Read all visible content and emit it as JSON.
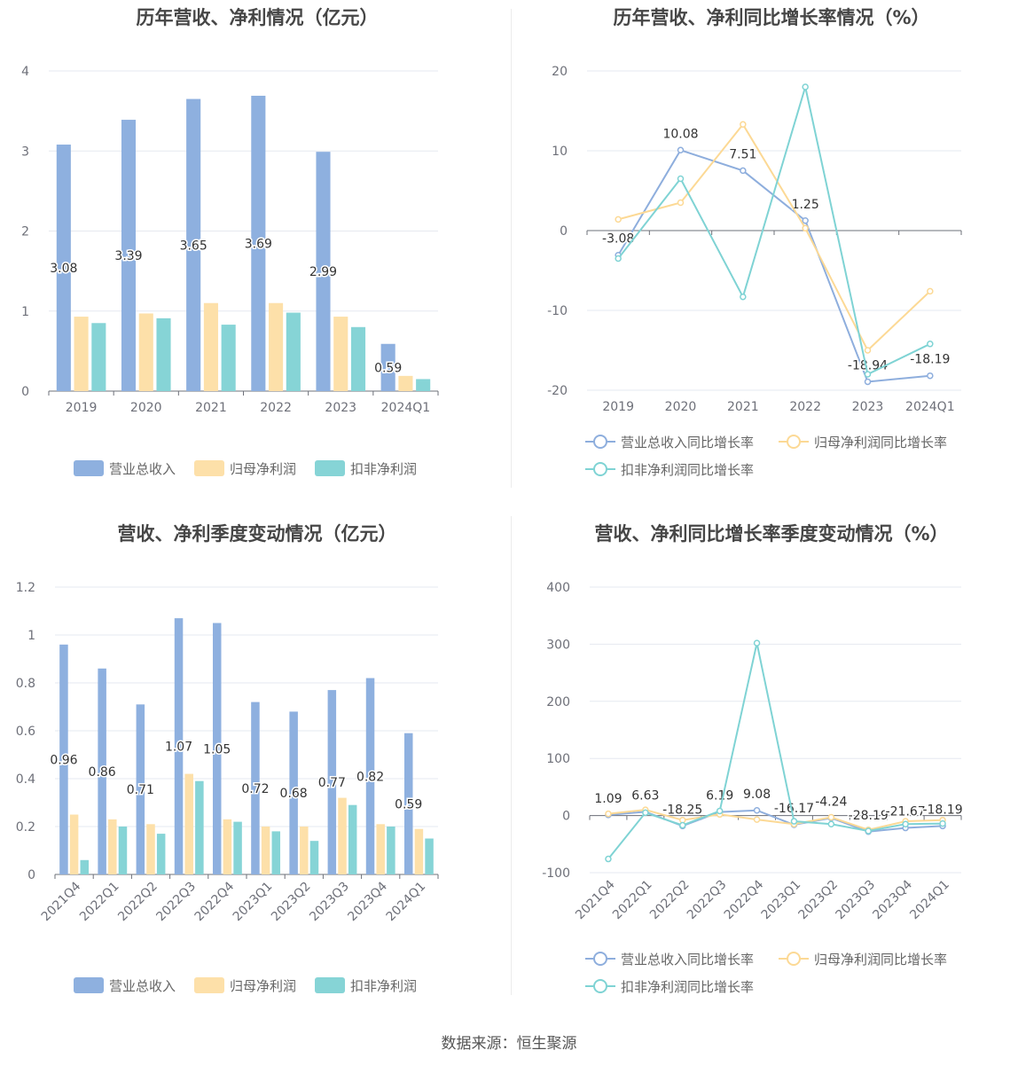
{
  "charts": [
    {
      "title": "历年营收、净利情况（亿元）",
      "chart_data": {
        "type": "bar",
        "categories": [
          "2019",
          "2020",
          "2021",
          "2022",
          "2023",
          "2024Q1"
        ],
        "series": [
          {
            "name": "营业总收入",
            "values": [
              3.08,
              3.39,
              3.65,
              3.69,
              2.99,
              0.59
            ],
            "color": "#8eb0df",
            "labels": [
              "3.08",
              "3.39",
              "3.65",
              "3.69",
              "2.99",
              "0.59"
            ]
          },
          {
            "name": "归母净利润",
            "values": [
              0.93,
              0.97,
              1.1,
              1.1,
              0.93,
              0.19
            ],
            "color": "#fde0a9"
          },
          {
            "name": "扣非净利润",
            "values": [
              0.85,
              0.91,
              0.83,
              0.98,
              0.8,
              0.15
            ],
            "color": "#86d4d6"
          }
        ],
        "ylim": [
          0,
          4
        ],
        "yticks": [
          "0",
          "1",
          "2",
          "3",
          "4"
        ],
        "legend": "bottom"
      }
    },
    {
      "title": "历年营收、净利同比增长率情况（%）",
      "chart_data": {
        "type": "line",
        "categories": [
          "2019",
          "2020",
          "2021",
          "2022",
          "2023",
          "2024Q1"
        ],
        "series": [
          {
            "name": "营业总收入同比增长率",
            "values": [
              -3.08,
              10.08,
              7.51,
              1.25,
              -18.94,
              -18.19
            ],
            "color": "#8eaedd",
            "labels": [
              "-3.08",
              "10.08",
              "7.51",
              "1.25",
              "-18.94",
              "-18.19"
            ]
          },
          {
            "name": "归母净利润同比增长率",
            "values": [
              1.4,
              3.5,
              13.3,
              0.3,
              -15.0,
              -7.6
            ],
            "color": "#fcd995"
          },
          {
            "name": "扣非净利润同比增长率",
            "values": [
              -3.5,
              6.5,
              -8.3,
              18.0,
              -18.0,
              -14.2
            ],
            "color": "#7fd3d4"
          }
        ],
        "ylim": [
          -20,
          20
        ],
        "yticks": [
          "-20",
          "-10",
          "0",
          "10",
          "20"
        ],
        "legend": "bottom"
      }
    },
    {
      "title": "营收、净利季度变动情况（亿元）",
      "chart_data": {
        "type": "bar",
        "categories": [
          "2021Q4",
          "2022Q1",
          "2022Q2",
          "2022Q3",
          "2022Q4",
          "2023Q1",
          "2023Q2",
          "2023Q3",
          "2023Q4",
          "2024Q1"
        ],
        "series": [
          {
            "name": "营业总收入",
            "values": [
              0.96,
              0.86,
              0.71,
              1.07,
              1.05,
              0.72,
              0.68,
              0.77,
              0.82,
              0.59
            ],
            "color": "#8eb0df",
            "labels": [
              "0.96",
              "0.86",
              "0.71",
              "1.07",
              "1.05",
              "0.72",
              "0.68",
              "0.77",
              "0.82",
              "0.59"
            ]
          },
          {
            "name": "归母净利润",
            "values": [
              0.25,
              0.23,
              0.21,
              0.42,
              0.23,
              0.2,
              0.2,
              0.32,
              0.21,
              0.19
            ],
            "color": "#fde0a9"
          },
          {
            "name": "扣非净利润",
            "values": [
              0.06,
              0.2,
              0.17,
              0.39,
              0.22,
              0.18,
              0.14,
              0.29,
              0.2,
              0.15
            ],
            "color": "#86d4d6"
          }
        ],
        "ylim": [
          0,
          1.2
        ],
        "yticks": [
          "0",
          "0.2",
          "0.4",
          "0.6",
          "0.8",
          "1",
          "1.2"
        ],
        "legend": "bottom"
      }
    },
    {
      "title": "营收、净利同比增长率季度变动情况（%）",
      "chart_data": {
        "type": "line",
        "categories": [
          "2021Q4",
          "2022Q1",
          "2022Q2",
          "2022Q3",
          "2022Q4",
          "2023Q1",
          "2023Q2",
          "2023Q3",
          "2023Q4",
          "2024Q1"
        ],
        "series": [
          {
            "name": "营业总收入同比增长率",
            "values": [
              1.09,
              6.63,
              -18.25,
              6.19,
              9.08,
              -16.17,
              -4.24,
              -28.19,
              -21.67,
              -18.19
            ],
            "color": "#8eaedd",
            "labels": [
              "1.09",
              "6.63",
              "-18.25",
              "6.19",
              "9.08",
              "-16.17",
              "-4.24",
              "-28.19",
              "-21.67",
              "-18.19"
            ]
          },
          {
            "name": "归母净利润同比增长率",
            "values": [
              3,
              10,
              -8,
              2,
              -7,
              -15,
              -3,
              -25,
              -10,
              -8
            ],
            "color": "#fcd995"
          },
          {
            "name": "扣非净利润同比增长率",
            "values": [
              -76,
              5,
              -17,
              8,
              302,
              -10,
              -15,
              -27,
              -15,
              -14
            ],
            "color": "#7fd3d4"
          }
        ],
        "ylim": [
          -100,
          400
        ],
        "yticks": [
          "-100",
          "0",
          "100",
          "200",
          "300",
          "400"
        ],
        "legend": "bottom"
      }
    }
  ],
  "source": "数据来源：恒生聚源"
}
